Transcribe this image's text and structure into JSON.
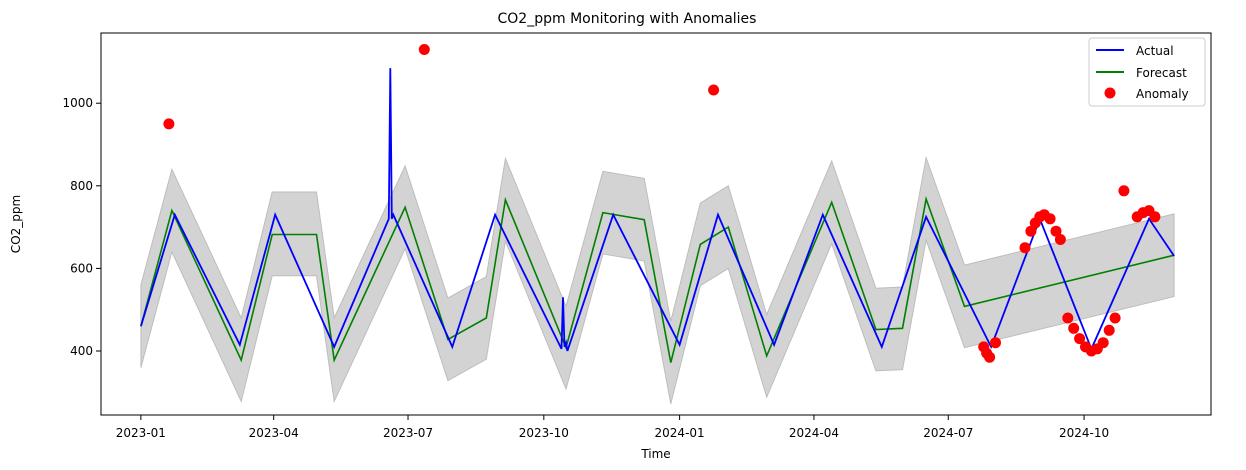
{
  "chart_data": {
    "type": "line",
    "title": "CO2_ppm Monitoring with Anomalies",
    "xlabel": "Time",
    "ylabel": "CO2_ppm",
    "xlim": [
      "2022-12-05",
      "2024-12-26"
    ],
    "ylim": [
      245,
      1170
    ],
    "x_ticks": [
      "2023-01",
      "2023-04",
      "2023-07",
      "2023-10",
      "2024-01",
      "2024-04",
      "2024-07",
      "2024-10"
    ],
    "y_ticks": [
      400,
      600,
      800,
      1000
    ],
    "legend": {
      "placement": "top-right",
      "entries": [
        "Actual",
        "Forecast",
        "Anomaly"
      ]
    },
    "colors": {
      "actual": "#0000ff",
      "forecast": "#008000",
      "anomaly": "#ff0000",
      "band": "#d3d3d3",
      "band_edge": "#bdbdbd"
    },
    "series": [
      {
        "name": "Actual",
        "x": [
          "2023-01-01",
          "2023-01-24",
          "2023-03-09",
          "2023-04-02",
          "2023-05-12",
          "2023-06-18",
          "2023-06-19",
          "2023-06-20",
          "2023-06-21",
          "2023-07-31",
          "2023-08-29",
          "2023-10-13",
          "2023-10-14",
          "2023-10-15",
          "2023-10-16",
          "2023-10-17",
          "2023-11-17",
          "2024-01-01",
          "2024-01-27",
          "2024-03-05",
          "2024-04-07",
          "2024-05-17",
          "2024-06-16",
          "2024-07-30",
          "2024-09-01",
          "2024-10-06",
          "2024-11-14",
          "2024-12-01"
        ],
        "values": [
          460,
          730,
          415,
          730,
          410,
          720,
          1085,
          720,
          730,
          410,
          730,
          405,
          530,
          410,
          420,
          400,
          730,
          415,
          730,
          415,
          730,
          410,
          725,
          410,
          720,
          405,
          720,
          630
        ]
      },
      {
        "name": "Forecast",
        "x": [
          "2023-01-01",
          "2023-01-22",
          "2023-03-10",
          "2023-03-31",
          "2023-04-30",
          "2023-05-12",
          "2023-06-29",
          "2023-07-28",
          "2023-08-23",
          "2023-09-05",
          "2023-10-16",
          "2023-11-10",
          "2023-12-08",
          "2023-12-26",
          "2024-01-15",
          "2024-02-03",
          "2024-02-29",
          "2024-04-13",
          "2024-05-13",
          "2024-05-31",
          "2024-06-16",
          "2024-07-12",
          "2024-12-01"
        ],
        "values": [
          460,
          740,
          378,
          682,
          682,
          378,
          748,
          428,
          480,
          766,
          408,
          735,
          718,
          372,
          658,
          700,
          388,
          760,
          452,
          455,
          768,
          508,
          632
        ]
      },
      {
        "name": "Forecast band",
        "x": [
          "2023-01-01",
          "2023-01-22",
          "2023-03-10",
          "2023-03-31",
          "2023-04-30",
          "2023-05-12",
          "2023-06-29",
          "2023-07-28",
          "2023-08-23",
          "2023-09-05",
          "2023-10-16",
          "2023-11-10",
          "2023-12-08",
          "2023-12-26",
          "2024-01-15",
          "2024-02-03",
          "2024-02-29",
          "2024-04-13",
          "2024-05-13",
          "2024-05-31",
          "2024-06-16",
          "2024-07-12",
          "2024-12-01"
        ],
        "upper": [
          560,
          840,
          480,
          785,
          785,
          480,
          848,
          528,
          580,
          866,
          508,
          835,
          818,
          472,
          758,
          800,
          488,
          860,
          552,
          555,
          868,
          608,
          732
        ],
        "lower": [
          360,
          640,
          278,
          582,
          582,
          278,
          648,
          328,
          380,
          666,
          308,
          635,
          618,
          272,
          558,
          600,
          288,
          660,
          352,
          355,
          668,
          408,
          532
        ]
      },
      {
        "name": "Anomaly",
        "type": "scatter",
        "x": [
          "2023-01-20",
          "2023-07-12",
          "2024-01-24",
          "2024-07-25",
          "2024-07-27",
          "2024-07-29",
          "2024-08-02",
          "2024-08-22",
          "2024-08-26",
          "2024-08-29",
          "2024-09-01",
          "2024-09-04",
          "2024-09-08",
          "2024-09-12",
          "2024-09-15",
          "2024-09-20",
          "2024-09-24",
          "2024-09-28",
          "2024-10-02",
          "2024-10-06",
          "2024-10-10",
          "2024-10-14",
          "2024-10-18",
          "2024-10-22",
          "2024-10-28",
          "2024-11-06",
          "2024-11-10",
          "2024-11-14",
          "2024-11-18"
        ],
        "values": [
          950,
          1130,
          1032,
          410,
          395,
          385,
          420,
          650,
          690,
          710,
          725,
          730,
          720,
          690,
          670,
          480,
          455,
          430,
          410,
          400,
          405,
          420,
          450,
          480,
          788,
          725,
          735,
          740,
          725
        ]
      }
    ]
  }
}
